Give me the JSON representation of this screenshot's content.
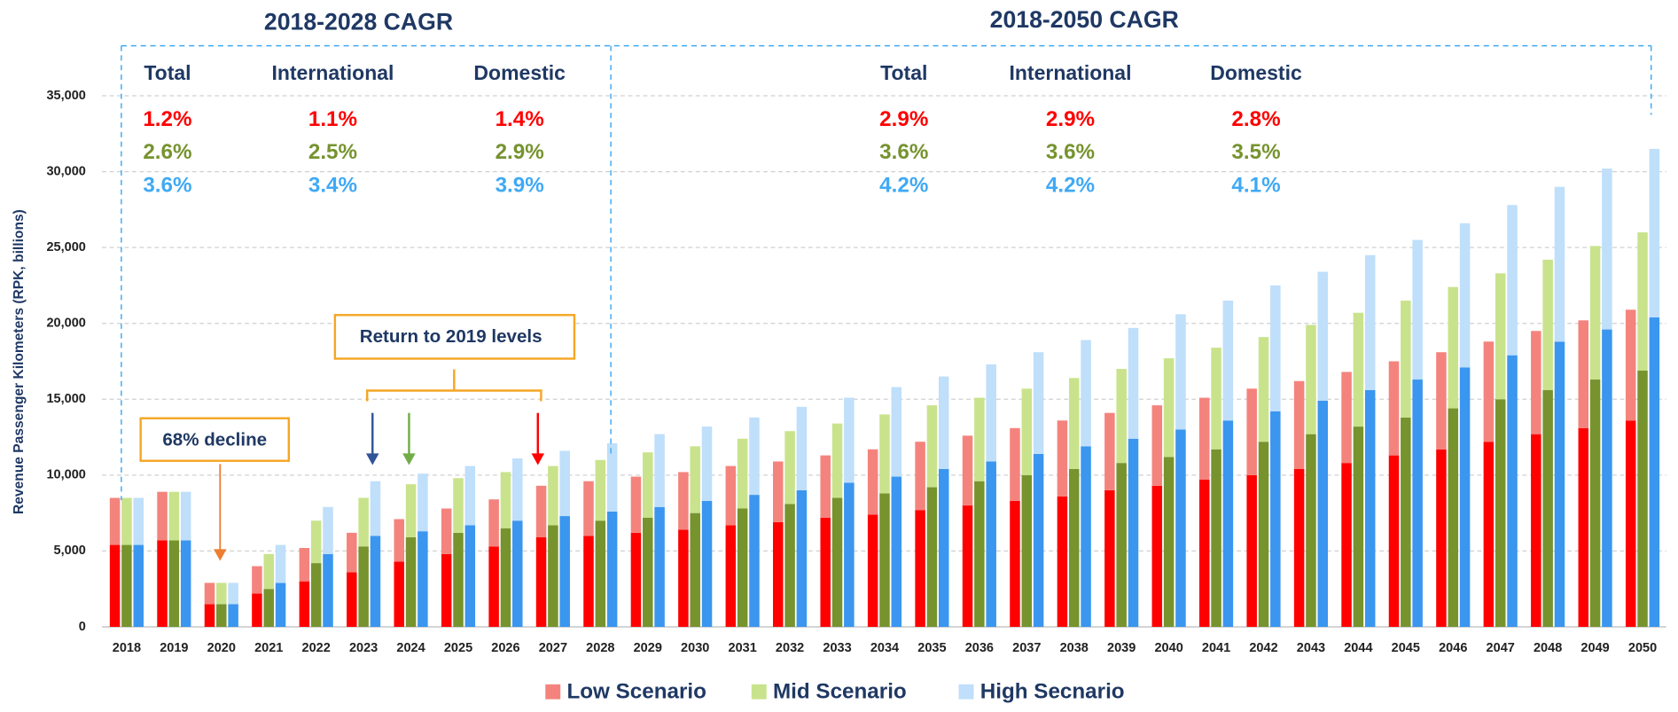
{
  "chart_data": {
    "type": "grouped_stacked_bar",
    "y_label": "Revenue Passenger Kilometers (RPK, billions)",
    "categories": [
      "2018",
      "2019",
      "2020",
      "2021",
      "2022",
      "2023",
      "2024",
      "2025",
      "2026",
      "2027",
      "2028",
      "2029",
      "2030",
      "2031",
      "2032",
      "2033",
      "2034",
      "2035",
      "2036",
      "2037",
      "2038",
      "2039",
      "2040",
      "2041",
      "2042",
      "2043",
      "2044",
      "2045",
      "2046",
      "2047",
      "2048",
      "2049",
      "2050"
    ],
    "series": [
      {
        "name": "Low Scenario",
        "color": "#f4837d",
        "lower_color": "#ff0000",
        "lower_values": [
          5400,
          5700,
          1500,
          2200,
          3000,
          3600,
          4300,
          4800,
          5300,
          5900,
          6000,
          6200,
          6400,
          6700,
          6900,
          7200,
          7400,
          7700,
          8000,
          8300,
          8600,
          9000,
          9300,
          9700,
          10000,
          10400,
          10800,
          11300,
          11700,
          12200,
          12700,
          13100,
          13600
        ],
        "values": [
          3100,
          3200,
          1400,
          1800,
          2200,
          2600,
          2800,
          3000,
          3100,
          3400,
          3600,
          3700,
          3800,
          3900,
          4000,
          4100,
          4300,
          4500,
          4600,
          4800,
          5000,
          5100,
          5300,
          5400,
          5700,
          5800,
          6000,
          6200,
          6400,
          6600,
          6800,
          7100,
          7300
        ]
      },
      {
        "name": "Mid Scenario",
        "color": "#c9e38c",
        "lower_color": "#76932e",
        "lower_values": [
          5400,
          5700,
          1500,
          2500,
          4200,
          5300,
          5900,
          6200,
          6500,
          6700,
          7000,
          7200,
          7500,
          7800,
          8100,
          8500,
          8800,
          9200,
          9600,
          10000,
          10400,
          10800,
          11200,
          11700,
          12200,
          12700,
          13200,
          13800,
          14400,
          15000,
          15600,
          16300,
          16900
        ],
        "values": [
          3100,
          3200,
          1400,
          2300,
          2800,
          3200,
          3500,
          3600,
          3700,
          3900,
          4000,
          4300,
          4400,
          4600,
          4800,
          4900,
          5200,
          5400,
          5500,
          5700,
          6000,
          6200,
          6500,
          6700,
          6900,
          7200,
          7500,
          7700,
          8000,
          8300,
          8600,
          8800,
          9100
        ]
      },
      {
        "name": "High Secnario",
        "color": "#bfdffa",
        "lower_color": "#3a96ef",
        "lower_values": [
          5400,
          5700,
          1500,
          2900,
          4800,
          6000,
          6300,
          6700,
          7000,
          7300,
          7600,
          7900,
          8300,
          8700,
          9000,
          9500,
          9900,
          10400,
          10900,
          11400,
          11900,
          12400,
          13000,
          13600,
          14200,
          14900,
          15600,
          16300,
          17100,
          17900,
          18800,
          19600,
          20400
        ],
        "values": [
          3100,
          3200,
          1400,
          2500,
          3100,
          3600,
          3800,
          3900,
          4100,
          4300,
          4500,
          4800,
          4900,
          5100,
          5500,
          5600,
          5900,
          6100,
          6400,
          6700,
          7000,
          7300,
          7600,
          7900,
          8300,
          8500,
          8900,
          9200,
          9500,
          9900,
          10200,
          10600,
          11100
        ]
      }
    ],
    "ylim": [
      0,
      35000
    ],
    "yticks": [
      0,
      {
        "value": 5000,
        "label": "5,000"
      },
      {
        "value": 10000,
        "label": "10,000"
      },
      {
        "value": 15000,
        "label": "15,000"
      },
      {
        "value": 20000,
        "label": "20,000"
      },
      {
        "value": 25000,
        "label": "25,000"
      },
      {
        "value": 30000,
        "label": "30,000"
      },
      {
        "value": 35000,
        "label": "35,000"
      }
    ],
    "grid": true,
    "cagr_tables": [
      {
        "title": "2018-2028 CAGR",
        "headers": [
          "Total",
          "International",
          "Domestic"
        ],
        "row_colors": [
          "#ff0000",
          "#76932e",
          "#3fa9f5"
        ],
        "rows": [
          [
            "1.2%",
            "1.1%",
            "1.4%"
          ],
          [
            "2.6%",
            "2.5%",
            "2.9%"
          ],
          [
            "3.6%",
            "3.4%",
            "3.9%"
          ]
        ]
      },
      {
        "title": "2018-2050 CAGR",
        "headers": [
          "Total",
          "International",
          "Domestic"
        ],
        "row_colors": [
          "#ff0000",
          "#76932e",
          "#3fa9f5"
        ],
        "rows": [
          [
            "2.9%",
            "2.9%",
            "2.8%"
          ],
          [
            "3.6%",
            "3.6%",
            "3.5%"
          ],
          [
            "4.2%",
            "4.2%",
            "4.1%"
          ]
        ]
      }
    ],
    "annotations": [
      "68% decline",
      "Return to 2019 levels"
    ]
  }
}
